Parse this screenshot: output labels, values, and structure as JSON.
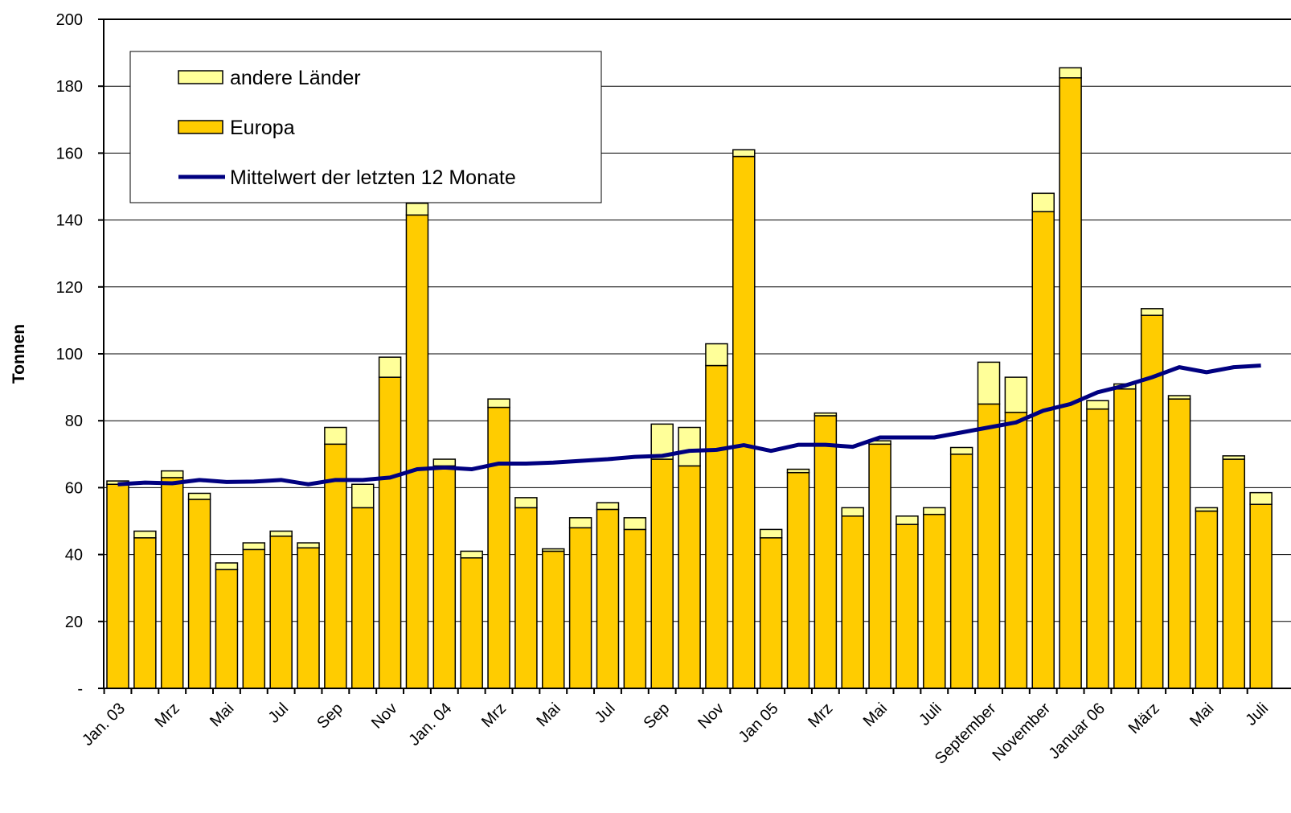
{
  "chart_data": {
    "type": "bar",
    "stacked": true,
    "y_label": "Tonnen",
    "categories": [
      "Jan. 03",
      null,
      "Mrz",
      null,
      "Mai",
      null,
      "Jul",
      null,
      "Sep",
      null,
      "Nov",
      null,
      "Jan. 04",
      null,
      "Mrz",
      null,
      "Mai",
      null,
      "Jul",
      null,
      "Sep",
      null,
      "Nov",
      null,
      "Jan 05",
      null,
      "Mrz",
      null,
      "Mai",
      null,
      "Juli",
      null,
      "September",
      null,
      "November",
      null,
      "Januar 06",
      null,
      "März",
      null,
      "Mai",
      null,
      "Juli"
    ],
    "series": [
      {
        "name": "andere Länder",
        "color": "#FFFF99",
        "values": [
          1,
          2,
          2,
          1.8,
          2,
          2,
          1.5,
          1.5,
          5,
          7,
          6,
          3.5,
          2,
          2,
          2.5,
          3,
          0.7,
          3,
          2,
          3.5,
          10.5,
          11.5,
          6.5,
          2,
          2.5,
          1,
          0.8,
          2.5,
          1,
          2.5,
          2,
          2,
          12.5,
          10.5,
          5.5,
          3,
          2.5,
          1.5,
          2,
          1,
          1,
          1,
          3.5
        ]
      },
      {
        "name": "Europa",
        "color": "#FFCC00",
        "values": [
          61,
          45,
          63,
          56.5,
          35.5,
          41.5,
          45.5,
          42,
          73,
          54,
          93,
          141.5,
          66.5,
          39,
          84,
          54,
          41,
          48,
          53.5,
          47.5,
          68.5,
          66.5,
          96.5,
          159,
          45,
          64.5,
          81.5,
          51.5,
          73,
          49,
          52,
          70,
          85,
          82.5,
          142.5,
          182.5,
          83.5,
          89.5,
          111.5,
          86.5,
          53,
          68.5,
          55
        ]
      },
      {
        "name": "Mittelwert der letzten 12 Monate",
        "color": "#000080",
        "type": "line",
        "values": [
          61,
          61.5,
          61.3,
          62.3,
          61.7,
          61.8,
          62.3,
          61,
          62.3,
          62.3,
          63,
          65.5,
          66,
          65.5,
          67.2,
          67.2,
          67.5,
          68,
          68.5,
          69.2,
          69.5,
          71,
          71.3,
          72.7,
          71,
          72.8,
          72.8,
          72.2,
          75,
          75,
          75,
          76.5,
          78,
          79.5,
          83,
          85,
          88.5,
          90.5,
          93,
          96,
          94.5,
          96,
          96.5
        ]
      }
    ],
    "ylim": [
      0,
      200
    ],
    "yticks": [
      {
        "value": 0,
        "label": "-"
      },
      20,
      40,
      60,
      80,
      100,
      120,
      140,
      160,
      180,
      200
    ],
    "grid": true,
    "legend": "top-left"
  }
}
